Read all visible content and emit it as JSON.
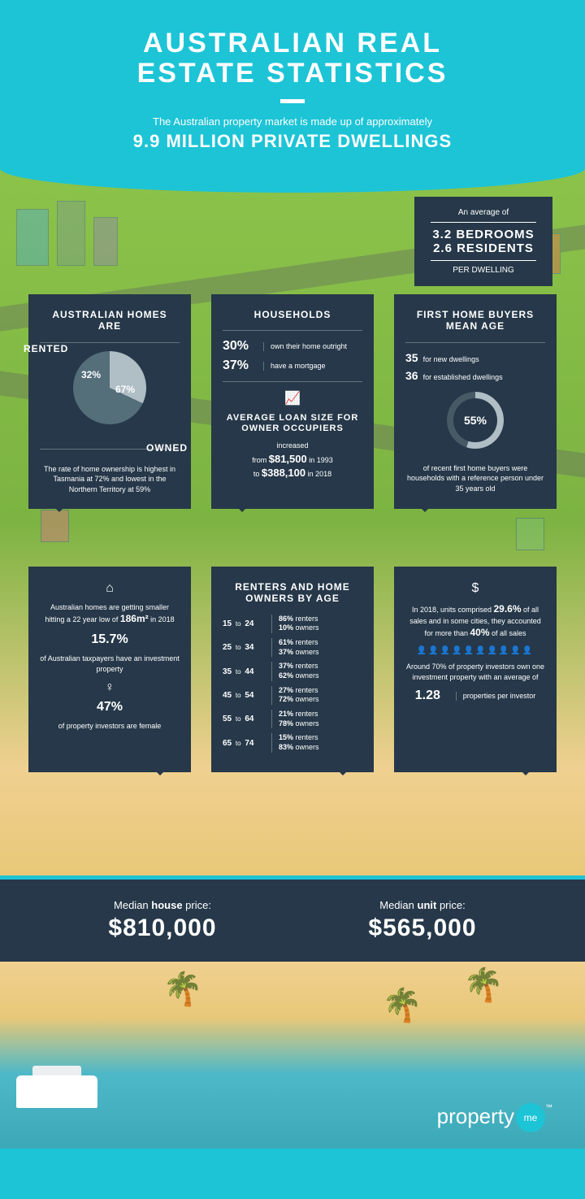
{
  "header": {
    "title_line1": "AUSTRALIAN REAL",
    "title_line2": "ESTATE STATISTICS",
    "subtitle": "The Australian property market is made up of approximately",
    "subtitle_big": "9.9 MILLION PRIVATE DWELLINGS"
  },
  "avg_box": {
    "intro": "An average of",
    "line1": "3.2 BEDROOMS",
    "line2": "2.6 RESIDENTS",
    "per": "PER DWELLING"
  },
  "panel_homes": {
    "title": "AUSTRALIAN HOMES ARE",
    "rented_label": "RENTED",
    "owned_label": "OWNED",
    "rented_pct": "32%",
    "owned_pct": "67%",
    "footer": "The rate of home ownership is highest in Tasmania at 72% and lowest in the Northern Territory at 59%"
  },
  "panel_households": {
    "title": "HOUSEHOLDS",
    "r1_pct": "30%",
    "r1_lbl": "own their home outright",
    "r2_pct": "37%",
    "r2_lbl": "have a mortgage",
    "loan_title": "AVERAGE LOAN SIZE FOR OWNER OCCUPIERS",
    "loan_inc": "increased",
    "from_lbl": "from",
    "from_val": "$81,500",
    "from_year": "in 1993",
    "to_lbl": "to",
    "to_val": "$388,100",
    "to_year": "in 2018"
  },
  "panel_fhb": {
    "title": "FIRST HOME BUYERS MEAN AGE",
    "r1_age": "35",
    "r1_lbl": "for new dwellings",
    "r2_age": "36",
    "r2_lbl": "for established dwellings",
    "ring_pct": "55%",
    "ring_text": "of recent first home buyers were households with a reference person under 35 years old"
  },
  "panel_smaller": {
    "house_icon": "⌂",
    "p1_a": "Australian homes are getting smaller hitting a 22 year low of ",
    "p1_b": "186m²",
    "p1_c": " in 2018",
    "pct1": "15.7%",
    "pct1_text": "of Australian taxpayers have an investment property",
    "person_icon": "♀",
    "pct2": "47%",
    "pct2_text": "of property investors are female"
  },
  "panel_byage": {
    "title": "RENTERS AND HOME OWNERS BY AGE",
    "rows": [
      {
        "range_a": "15",
        "range_b": "24",
        "renters": "86%",
        "owners": "10%"
      },
      {
        "range_a": "25",
        "range_b": "34",
        "renters": "61%",
        "owners": "37%"
      },
      {
        "range_a": "35",
        "range_b": "44",
        "renters": "37%",
        "owners": "62%"
      },
      {
        "range_a": "45",
        "range_b": "54",
        "renters": "27%",
        "owners": "72%"
      },
      {
        "range_a": "55",
        "range_b": "64",
        "renters": "21%",
        "owners": "78%"
      },
      {
        "range_a": "65",
        "range_b": "74",
        "renters": "15%",
        "owners": "83%"
      }
    ],
    "to_word": "to",
    "renters_lbl": "renters",
    "owners_lbl": "owners"
  },
  "panel_sales": {
    "dollar_icon": "$",
    "p1_a": "In 2018, units comprised ",
    "p1_b": "29.6%",
    "p1_c": " of all sales and in some cities, they accounted for more than ",
    "p1_d": "40%",
    "p1_e": " of all sales",
    "p2": "Around 70% of property investors own one investment property with an average of",
    "pct": "1.28",
    "pct_lbl": "properties per investor"
  },
  "median": {
    "house_label_a": "Median ",
    "house_label_b": "house",
    "house_label_c": " price:",
    "house_price": "$810,000",
    "unit_label_a": "Median ",
    "unit_label_b": "unit",
    "unit_label_c": " price:",
    "unit_price": "$565,000"
  },
  "logo": {
    "text_a": "property",
    "text_b": "me",
    "tm": "™"
  },
  "colors": {
    "primary_bg": "#1cc4d6",
    "panel_bg": "#263849",
    "text": "#ffffff",
    "pie_slice1": "#b0bec5",
    "pie_slice2": "#546e7a",
    "ring_fill": "#b0bec5",
    "ring_empty": "#455a64",
    "grass": "#8bc34a",
    "sand": "#f0d090",
    "water": "#4db8c8"
  }
}
